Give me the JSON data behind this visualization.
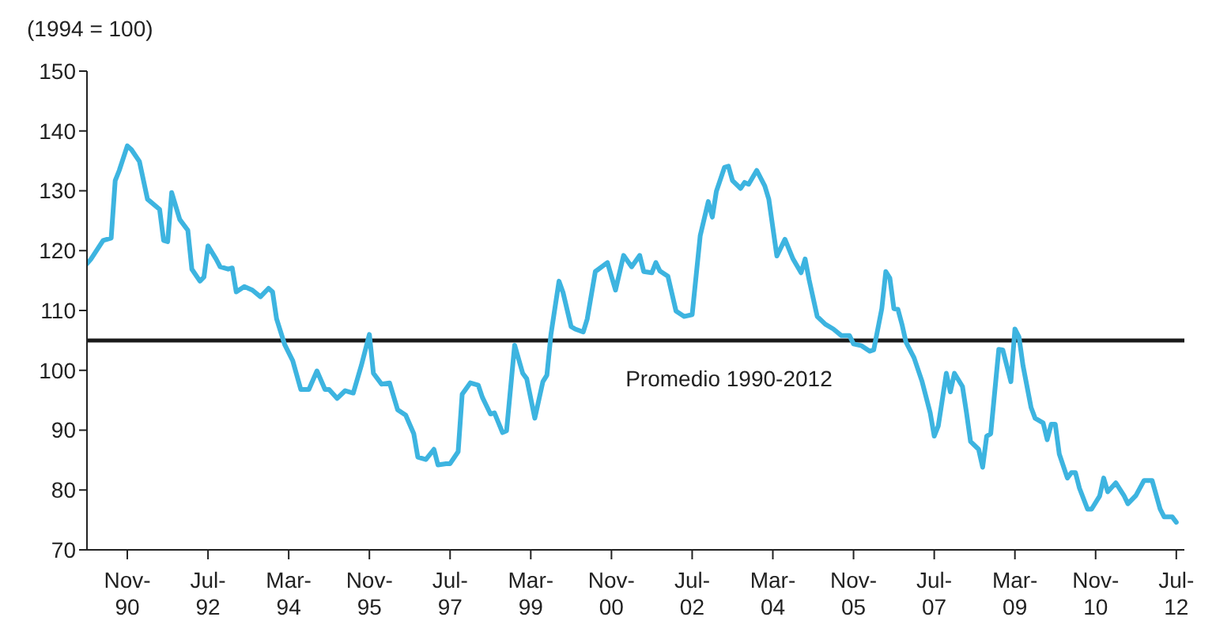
{
  "chart_data": {
    "type": "line",
    "ylabel": "(1994 = 100)",
    "x": [
      "1990-01",
      "1990-02",
      "1990-05",
      "1990-07",
      "1990-08",
      "1990-09",
      "1990-11",
      "1990-12",
      "1991-02",
      "1991-04",
      "1991-07",
      "1991-08",
      "1991-09",
      "1991-10",
      "1991-12",
      "1992-02",
      "1992-03",
      "1992-05",
      "1992-06",
      "1992-07",
      "1992-09",
      "1992-10",
      "1992-12",
      "1993-01",
      "1993-02",
      "1993-04",
      "1993-06",
      "1993-08",
      "1993-10",
      "1993-11",
      "1993-12",
      "1994-02",
      "1994-04",
      "1994-06",
      "1994-08",
      "1994-10",
      "1994-12",
      "1995-01",
      "1995-03",
      "1995-05",
      "1995-07",
      "1995-09",
      "1995-11",
      "1995-12",
      "1996-02",
      "1996-04",
      "1996-06",
      "1996-08",
      "1996-10",
      "1996-11",
      "1997-01",
      "1997-03",
      "1997-04",
      "1997-06",
      "1997-07",
      "1997-09",
      "1997-10",
      "1997-12",
      "1998-02",
      "1998-03",
      "1998-05",
      "1998-06",
      "1998-08",
      "1998-09",
      "1998-11",
      "1999-01",
      "1999-02",
      "1999-04",
      "1999-06",
      "1999-07",
      "1999-08",
      "1999-10",
      "1999-11",
      "2000-01",
      "2000-02",
      "2000-04",
      "2000-05",
      "2000-07",
      "2000-09",
      "2000-10",
      "2000-12",
      "2001-02",
      "2001-04",
      "2001-06",
      "2001-07",
      "2001-09",
      "2001-10",
      "2001-11",
      "2002-01",
      "2002-03",
      "2002-05",
      "2002-07",
      "2002-09",
      "2002-11",
      "2002-12",
      "2003-01",
      "2003-03",
      "2003-04",
      "2003-05",
      "2003-07",
      "2003-08",
      "2003-09",
      "2003-11",
      "2004-01",
      "2004-02",
      "2004-04",
      "2004-06",
      "2004-08",
      "2004-10",
      "2004-11",
      "2004-12",
      "2005-02",
      "2005-04",
      "2005-06",
      "2005-08",
      "2005-10",
      "2005-11",
      "2006-01",
      "2006-03",
      "2006-04",
      "2006-06",
      "2006-07",
      "2006-08",
      "2006-09",
      "2006-10",
      "2006-11",
      "2006-12",
      "2007-02",
      "2007-04",
      "2007-06",
      "2007-07",
      "2007-08",
      "2007-10",
      "2007-11",
      "2007-12",
      "2008-02",
      "2008-03",
      "2008-04",
      "2008-06",
      "2008-07",
      "2008-08",
      "2008-09",
      "2008-11",
      "2008-12",
      "2009-02",
      "2009-03",
      "2009-04",
      "2009-05",
      "2009-07",
      "2009-08",
      "2009-10",
      "2009-11",
      "2009-12",
      "2010-01",
      "2010-02",
      "2010-04",
      "2010-05",
      "2010-06",
      "2010-07",
      "2010-09",
      "2010-10",
      "2010-12",
      "2011-01",
      "2011-02",
      "2011-04",
      "2011-06",
      "2011-07",
      "2011-09",
      "2011-11",
      "2012-01",
      "2012-03",
      "2012-04",
      "2012-06",
      "2012-07"
    ],
    "series": [
      {
        "color": "#3db4e0",
        "values": [
          117.8,
          118.6,
          121.7,
          122.1,
          131.7,
          133.4,
          137.5,
          136.9,
          134.9,
          128.6,
          126.9,
          121.7,
          121.5,
          129.7,
          125.2,
          123.4,
          116.9,
          114.9,
          115.6,
          120.8,
          118.6,
          117.3,
          116.9,
          117.1,
          113.1,
          114.0,
          113.4,
          112.3,
          113.7,
          113.1,
          108.6,
          104.3,
          101.6,
          96.8,
          96.8,
          99.9,
          96.8,
          96.8,
          95.3,
          96.6,
          96.2,
          100.8,
          106.0,
          99.5,
          97.7,
          97.9,
          93.4,
          92.5,
          89.4,
          85.5,
          85.1,
          86.8,
          84.2,
          84.4,
          84.4,
          86.4,
          96.0,
          97.9,
          97.5,
          95.5,
          92.7,
          92.9,
          89.6,
          89.9,
          104.2,
          99.5,
          98.6,
          92.0,
          98.1,
          99.2,
          106.0,
          114.9,
          113.0,
          107.3,
          106.9,
          106.4,
          108.6,
          116.5,
          117.5,
          118.0,
          113.4,
          119.2,
          117.3,
          119.2,
          116.5,
          116.3,
          118.0,
          116.6,
          115.7,
          109.9,
          109.0,
          109.3,
          122.5,
          128.2,
          125.6,
          129.9,
          133.9,
          134.1,
          131.7,
          130.4,
          131.4,
          131.1,
          133.4,
          130.8,
          128.6,
          119.1,
          121.9,
          118.6,
          116.3,
          118.6,
          115.1,
          109.0,
          107.7,
          106.9,
          105.8,
          105.8,
          104.4,
          104.1,
          103.2,
          103.4,
          110.3,
          116.5,
          115.4,
          110.3,
          110.2,
          107.7,
          104.7,
          102.1,
          98.1,
          92.9,
          89.0,
          90.7,
          99.5,
          96.4,
          99.5,
          97.3,
          92.9,
          88.1,
          86.8,
          83.8,
          89.0,
          89.4,
          103.5,
          103.4,
          98.1,
          106.9,
          105.6,
          100.8,
          93.8,
          92.0,
          91.2,
          88.4,
          91.0,
          91.0,
          86.0,
          82.0,
          82.9,
          82.9,
          80.3,
          76.8,
          76.8,
          79.0,
          82.0,
          79.7,
          81.2,
          79.1,
          77.7,
          79.1,
          81.6,
          81.6,
          76.8,
          75.5,
          75.5,
          74.6
        ]
      }
    ],
    "xlim": [
      "1990-01",
      "2012-09"
    ],
    "xticks": [
      {
        "value": "1990-11",
        "label": "Nov-90"
      },
      {
        "value": "1992-07",
        "label": "Jul-92"
      },
      {
        "value": "1994-03",
        "label": "Mar-94"
      },
      {
        "value": "1995-11",
        "label": "Nov-95"
      },
      {
        "value": "1997-07",
        "label": "Jul-97"
      },
      {
        "value": "1999-03",
        "label": "Mar-99"
      },
      {
        "value": "2000-11",
        "label": "Nov-00"
      },
      {
        "value": "2002-07",
        "label": "Jul-02"
      },
      {
        "value": "2004-03",
        "label": "Mar-04"
      },
      {
        "value": "2005-11",
        "label": "Nov-05"
      },
      {
        "value": "2007-07",
        "label": "Jul-07"
      },
      {
        "value": "2009-03",
        "label": "Mar-09"
      },
      {
        "value": "2010-11",
        "label": "Nov-10"
      },
      {
        "value": "2012-07",
        "label": "Jul-12"
      }
    ],
    "ylim": [
      70,
      150
    ],
    "yticks": [
      70,
      80,
      90,
      100,
      110,
      120,
      130,
      140,
      150
    ],
    "ref_lines": [
      {
        "axis": "y",
        "value": 105,
        "label": "Promedio 1990-2012",
        "color": "#1a1a1a"
      }
    ]
  }
}
